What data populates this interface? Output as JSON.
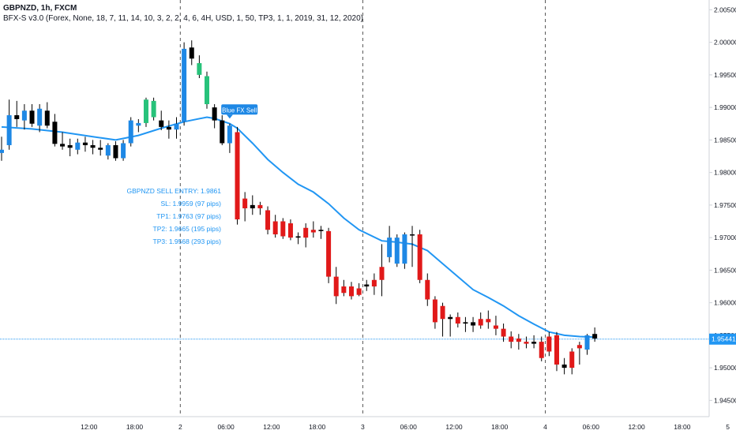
{
  "header": {
    "symbol_line": "GBPNZD, 1h, FXCM",
    "indicator_line": "BFX-S v3.0 (Forex, None, 18, 7, 11, 14, 10, 3, 2, 2, 4, 6, 4H, USD, 1, 50, TP3, 1, 1, 2019, 31, 12, 2020)"
  },
  "colors": {
    "bull": "#1e88e5",
    "bear": "#e11919",
    "neutral": "#000000",
    "green": "#27c27a",
    "ma_line": "#2196f3",
    "price_line": "#2196f3",
    "info_text": "#2196f3",
    "grid_axis": "#cfd3d8"
  },
  "signal": {
    "label": "Blue FX Sell"
  },
  "trade_info": [
    "GBPNZD SELL ENTRY: 1.9861",
    "SL: 1.9959 (97 pips)",
    "TP1: 1.9763 (97 pips)",
    "TP2: 1.9665 (195 pips)",
    "TP3: 1.9568 (293 pips)"
  ],
  "current_price": "1.95441",
  "chart_data": {
    "type": "candlestick",
    "symbol": "GBPNZD",
    "timeframe": "1h",
    "ylim": [
      1.9425,
      2.0065
    ],
    "y_ticks": [
      "2.00500",
      "2.00000",
      "1.99500",
      "1.99000",
      "1.98500",
      "1.98000",
      "1.97500",
      "1.97000",
      "1.96500",
      "1.96000",
      "1.95500",
      "1.95000",
      "1.94500"
    ],
    "x_ticks": [
      "12:00",
      "18:00",
      "2",
      "06:00",
      "12:00",
      "18:00",
      "3",
      "06:00",
      "12:00",
      "18:00",
      "4",
      "06:00",
      "12:00",
      "18:00",
      "5"
    ],
    "x_tick_hours": [
      12,
      18,
      24,
      30,
      36,
      42,
      48,
      54,
      60,
      66,
      72,
      78,
      84,
      90,
      96
    ],
    "day_separators_hours": [
      24,
      48,
      72
    ],
    "candles": [
      {
        "t": 0,
        "o": 1.983,
        "h": 1.9855,
        "l": 1.9818,
        "c": 1.9835,
        "k": "bull"
      },
      {
        "t": 1,
        "o": 1.9842,
        "h": 1.9912,
        "l": 1.9835,
        "c": 1.9888,
        "k": "bull"
      },
      {
        "t": 2,
        "o": 1.9882,
        "h": 1.991,
        "l": 1.987,
        "c": 1.9888,
        "k": "neutral"
      },
      {
        "t": 3,
        "o": 1.988,
        "h": 1.9905,
        "l": 1.9866,
        "c": 1.9895,
        "k": "bull"
      },
      {
        "t": 4,
        "o": 1.9895,
        "h": 1.9905,
        "l": 1.987,
        "c": 1.9875,
        "k": "neutral"
      },
      {
        "t": 5,
        "o": 1.9872,
        "h": 1.9905,
        "l": 1.9862,
        "c": 1.9898,
        "k": "bull"
      },
      {
        "t": 6,
        "o": 1.9895,
        "h": 1.9908,
        "l": 1.9868,
        "c": 1.9872,
        "k": "neutral"
      },
      {
        "t": 7,
        "o": 1.9878,
        "h": 1.989,
        "l": 1.984,
        "c": 1.9844,
        "k": "neutral"
      },
      {
        "t": 8,
        "o": 1.9844,
        "h": 1.9862,
        "l": 1.9835,
        "c": 1.984,
        "k": "neutral"
      },
      {
        "t": 9,
        "o": 1.9842,
        "h": 1.9852,
        "l": 1.9825,
        "c": 1.9838,
        "k": "neutral"
      },
      {
        "t": 10,
        "o": 1.9835,
        "h": 1.9852,
        "l": 1.9828,
        "c": 1.9846,
        "k": "bull"
      },
      {
        "t": 11,
        "o": 1.9846,
        "h": 1.9855,
        "l": 1.9832,
        "c": 1.9842,
        "k": "neutral"
      },
      {
        "t": 12,
        "o": 1.9842,
        "h": 1.985,
        "l": 1.9828,
        "c": 1.9838,
        "k": "neutral"
      },
      {
        "t": 13,
        "o": 1.9838,
        "h": 1.985,
        "l": 1.9826,
        "c": 1.9835,
        "k": "neutral"
      },
      {
        "t": 14,
        "o": 1.9826,
        "h": 1.9845,
        "l": 1.982,
        "c": 1.9842,
        "k": "bull"
      },
      {
        "t": 15,
        "o": 1.9842,
        "h": 1.9848,
        "l": 1.9818,
        "c": 1.9822,
        "k": "neutral"
      },
      {
        "t": 16,
        "o": 1.9822,
        "h": 1.985,
        "l": 1.9818,
        "c": 1.9845,
        "k": "bull"
      },
      {
        "t": 17,
        "o": 1.9845,
        "h": 1.9885,
        "l": 1.984,
        "c": 1.988,
        "k": "bull"
      },
      {
        "t": 18,
        "o": 1.9872,
        "h": 1.9882,
        "l": 1.9862,
        "c": 1.9876,
        "k": "bull"
      },
      {
        "t": 19,
        "o": 1.9876,
        "h": 1.9915,
        "l": 1.987,
        "c": 1.9912,
        "k": "green"
      },
      {
        "t": 20,
        "o": 1.9885,
        "h": 1.9915,
        "l": 1.988,
        "c": 1.991,
        "k": "green"
      },
      {
        "t": 21,
        "o": 1.988,
        "h": 1.9895,
        "l": 1.9865,
        "c": 1.987,
        "k": "neutral"
      },
      {
        "t": 22,
        "o": 1.987,
        "h": 1.988,
        "l": 1.9852,
        "c": 1.9866,
        "k": "neutral"
      },
      {
        "t": 23,
        "o": 1.9866,
        "h": 1.9885,
        "l": 1.9852,
        "c": 1.9875,
        "k": "bull"
      },
      {
        "t": 24,
        "o": 1.9878,
        "h": 2.0,
        "l": 1.9872,
        "c": 1.999,
        "k": "bull"
      },
      {
        "t": 25,
        "o": 1.9992,
        "h": 2.0003,
        "l": 1.9965,
        "c": 1.9975,
        "k": "neutral"
      },
      {
        "t": 26,
        "o": 1.9968,
        "h": 1.998,
        "l": 1.9945,
        "c": 1.995,
        "k": "green"
      },
      {
        "t": 27,
        "o": 1.9948,
        "h": 1.9955,
        "l": 1.9898,
        "c": 1.9905,
        "k": "green"
      },
      {
        "t": 28,
        "o": 1.99,
        "h": 1.9905,
        "l": 1.9868,
        "c": 1.988,
        "k": "neutral"
      },
      {
        "t": 29,
        "o": 1.988,
        "h": 1.9888,
        "l": 1.9842,
        "c": 1.9845,
        "k": "neutral"
      },
      {
        "t": 30,
        "o": 1.9845,
        "h": 1.9875,
        "l": 1.983,
        "c": 1.9872,
        "k": "bull"
      },
      {
        "t": 31,
        "o": 1.9862,
        "h": 1.987,
        "l": 1.972,
        "c": 1.9728,
        "k": "bear"
      },
      {
        "t": 32,
        "o": 1.976,
        "h": 1.977,
        "l": 1.9725,
        "c": 1.9745,
        "k": "bear"
      },
      {
        "t": 33,
        "o": 1.9745,
        "h": 1.9765,
        "l": 1.9735,
        "c": 1.975,
        "k": "neutral"
      },
      {
        "t": 34,
        "o": 1.975,
        "h": 1.9755,
        "l": 1.9735,
        "c": 1.9745,
        "k": "bear"
      },
      {
        "t": 35,
        "o": 1.9742,
        "h": 1.9748,
        "l": 1.9705,
        "c": 1.9712,
        "k": "bear"
      },
      {
        "t": 36,
        "o": 1.9725,
        "h": 1.9735,
        "l": 1.97,
        "c": 1.9705,
        "k": "bear"
      },
      {
        "t": 37,
        "o": 1.9725,
        "h": 1.973,
        "l": 1.9698,
        "c": 1.9702,
        "k": "bear"
      },
      {
        "t": 38,
        "o": 1.9722,
        "h": 1.9728,
        "l": 1.9696,
        "c": 1.97,
        "k": "bear"
      },
      {
        "t": 39,
        "o": 1.9702,
        "h": 1.9708,
        "l": 1.969,
        "c": 1.97,
        "k": "neutral"
      },
      {
        "t": 40,
        "o": 1.97,
        "h": 1.9722,
        "l": 1.9685,
        "c": 1.9715,
        "k": "bear"
      },
      {
        "t": 41,
        "o": 1.9712,
        "h": 1.9725,
        "l": 1.97,
        "c": 1.9708,
        "k": "bear"
      },
      {
        "t": 42,
        "o": 1.971,
        "h": 1.9718,
        "l": 1.9698,
        "c": 1.9712,
        "k": "neutral"
      },
      {
        "t": 43,
        "o": 1.971,
        "h": 1.9715,
        "l": 1.963,
        "c": 1.964,
        "k": "bear"
      },
      {
        "t": 44,
        "o": 1.964,
        "h": 1.9655,
        "l": 1.9598,
        "c": 1.961,
        "k": "bear"
      },
      {
        "t": 45,
        "o": 1.9625,
        "h": 1.9635,
        "l": 1.961,
        "c": 1.9615,
        "k": "bear"
      },
      {
        "t": 46,
        "o": 1.9625,
        "h": 1.9632,
        "l": 1.9605,
        "c": 1.961,
        "k": "bear"
      },
      {
        "t": 47,
        "o": 1.9622,
        "h": 1.963,
        "l": 1.961,
        "c": 1.9612,
        "k": "bear"
      },
      {
        "t": 48,
        "o": 1.9628,
        "h": 1.9635,
        "l": 1.9618,
        "c": 1.9625,
        "k": "neutral"
      },
      {
        "t": 49,
        "o": 1.9625,
        "h": 1.9645,
        "l": 1.9612,
        "c": 1.9635,
        "k": "bear"
      },
      {
        "t": 50,
        "o": 1.9635,
        "h": 1.969,
        "l": 1.961,
        "c": 1.9655,
        "k": "bear"
      },
      {
        "t": 51,
        "o": 1.967,
        "h": 1.9718,
        "l": 1.9662,
        "c": 1.97,
        "k": "bull"
      },
      {
        "t": 52,
        "o": 1.966,
        "h": 1.9705,
        "l": 1.9655,
        "c": 1.97,
        "k": "bull"
      },
      {
        "t": 53,
        "o": 1.966,
        "h": 1.9708,
        "l": 1.9652,
        "c": 1.9705,
        "k": "bull"
      },
      {
        "t": 54,
        "o": 1.9705,
        "h": 1.9718,
        "l": 1.9655,
        "c": 1.9705,
        "k": "neutral"
      },
      {
        "t": 55,
        "o": 1.9705,
        "h": 1.9712,
        "l": 1.963,
        "c": 1.9635,
        "k": "bear"
      },
      {
        "t": 56,
        "o": 1.9635,
        "h": 1.9645,
        "l": 1.9595,
        "c": 1.9605,
        "k": "bear"
      },
      {
        "t": 57,
        "o": 1.9605,
        "h": 1.961,
        "l": 1.956,
        "c": 1.957,
        "k": "bear"
      },
      {
        "t": 58,
        "o": 1.9595,
        "h": 1.96,
        "l": 1.9548,
        "c": 1.9575,
        "k": "bear"
      },
      {
        "t": 59,
        "o": 1.9575,
        "h": 1.9582,
        "l": 1.9548,
        "c": 1.9578,
        "k": "neutral"
      },
      {
        "t": 60,
        "o": 1.9578,
        "h": 1.9585,
        "l": 1.9562,
        "c": 1.9568,
        "k": "bear"
      },
      {
        "t": 61,
        "o": 1.9568,
        "h": 1.9578,
        "l": 1.9555,
        "c": 1.957,
        "k": "neutral"
      },
      {
        "t": 62,
        "o": 1.957,
        "h": 1.9578,
        "l": 1.9555,
        "c": 1.9565,
        "k": "neutral"
      },
      {
        "t": 63,
        "o": 1.9575,
        "h": 1.9585,
        "l": 1.956,
        "c": 1.9565,
        "k": "bear"
      },
      {
        "t": 64,
        "o": 1.9575,
        "h": 1.9588,
        "l": 1.956,
        "c": 1.957,
        "k": "bear"
      },
      {
        "t": 65,
        "o": 1.9565,
        "h": 1.958,
        "l": 1.955,
        "c": 1.956,
        "k": "bear"
      },
      {
        "t": 66,
        "o": 1.956,
        "h": 1.9568,
        "l": 1.954,
        "c": 1.9548,
        "k": "bear"
      },
      {
        "t": 67,
        "o": 1.9548,
        "h": 1.9556,
        "l": 1.953,
        "c": 1.954,
        "k": "bear"
      },
      {
        "t": 68,
        "o": 1.9545,
        "h": 1.9552,
        "l": 1.9528,
        "c": 1.954,
        "k": "bear"
      },
      {
        "t": 69,
        "o": 1.954,
        "h": 1.9548,
        "l": 1.953,
        "c": 1.9537,
        "k": "bear"
      },
      {
        "t": 70,
        "o": 1.954,
        "h": 1.955,
        "l": 1.953,
        "c": 1.9537,
        "k": "neutral"
      },
      {
        "t": 71,
        "o": 1.954,
        "h": 1.9548,
        "l": 1.951,
        "c": 1.9515,
        "k": "bear"
      },
      {
        "t": 72,
        "o": 1.9548,
        "h": 1.9555,
        "l": 1.9518,
        "c": 1.9525,
        "k": "bear"
      },
      {
        "t": 73,
        "o": 1.955,
        "h": 1.9555,
        "l": 1.9495,
        "c": 1.9505,
        "k": "bear"
      },
      {
        "t": 74,
        "o": 1.9505,
        "h": 1.9515,
        "l": 1.949,
        "c": 1.95,
        "k": "neutral"
      },
      {
        "t": 75,
        "o": 1.9525,
        "h": 1.953,
        "l": 1.949,
        "c": 1.95,
        "k": "bear"
      },
      {
        "t": 76,
        "o": 1.953,
        "h": 1.954,
        "l": 1.9505,
        "c": 1.9535,
        "k": "bear"
      },
      {
        "t": 77,
        "o": 1.9528,
        "h": 1.9552,
        "l": 1.952,
        "c": 1.955,
        "k": "bull"
      },
      {
        "t": 78,
        "o": 1.9552,
        "h": 1.9562,
        "l": 1.954,
        "c": 1.9545,
        "k": "neutral"
      }
    ],
    "ma": [
      [
        0,
        1.987
      ],
      [
        4,
        1.9867
      ],
      [
        8,
        1.9862
      ],
      [
        12,
        1.9855
      ],
      [
        15,
        1.985
      ],
      [
        18,
        1.9857
      ],
      [
        21,
        1.9868
      ],
      [
        24,
        1.9878
      ],
      [
        27,
        1.9885
      ],
      [
        28,
        1.9883
      ],
      [
        30,
        1.9875
      ],
      [
        31,
        1.9868
      ],
      [
        33,
        1.9845
      ],
      [
        35,
        1.982
      ],
      [
        37,
        1.98
      ],
      [
        39,
        1.9782
      ],
      [
        41,
        1.977
      ],
      [
        43,
        1.9752
      ],
      [
        45,
        1.973
      ],
      [
        47,
        1.9712
      ],
      [
        50,
        1.9695
      ],
      [
        52,
        1.9693
      ],
      [
        54,
        1.969
      ],
      [
        56,
        1.968
      ],
      [
        58,
        1.966
      ],
      [
        60,
        1.964
      ],
      [
        62,
        1.962
      ],
      [
        64,
        1.9608
      ],
      [
        66,
        1.9595
      ],
      [
        68,
        1.958
      ],
      [
        70,
        1.9567
      ],
      [
        72,
        1.9555
      ],
      [
        74,
        1.955
      ],
      [
        76,
        1.9548
      ],
      [
        78,
        1.9547
      ]
    ]
  }
}
